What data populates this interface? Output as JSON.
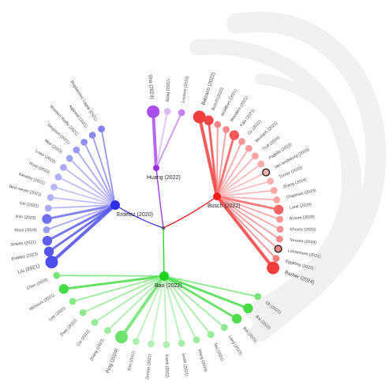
{
  "center": {
    "label": ""
  },
  "colors": {
    "blue": "#2f2fe8",
    "purple": "#9a2ee8",
    "red": "#f01c1c",
    "green": "#1ed41e"
  },
  "clusters": [
    {
      "id": "blue",
      "hub_label": "Erdelez (2020)",
      "items": [
        {
          "label": "Bogdanovic Lagiar (2021)",
          "weight": 1
        },
        {
          "label": "Agarwal (2021)",
          "weight": 1
        },
        {
          "label": "Montero Reiffe (2021)",
          "weight": 1
        },
        {
          "label": "Simpson (2021)",
          "weight": 1
        },
        {
          "label": "Med (2023)",
          "weight": 1
        },
        {
          "label": "Lowe (2022)",
          "weight": 1
        },
        {
          "label": "Ross (2023)",
          "weight": 1
        },
        {
          "label": "Kleveby (2021)",
          "weight": 1
        },
        {
          "label": "Bird-meyer (2021)",
          "weight": 1
        },
        {
          "label": "Gin (2022)",
          "weight": 1
        },
        {
          "label": "Kim (2023)",
          "weight": 2
        },
        {
          "label": "Ross (2024)",
          "weight": 1
        },
        {
          "label": "Smetts (2021)",
          "weight": 2
        },
        {
          "label": "Erdelez (2023)",
          "weight": 2
        },
        {
          "label": "Liu (2021)",
          "weight": 3
        }
      ]
    },
    {
      "id": "purple",
      "hub_label": "Huang (2022)",
      "items": [
        {
          "label": "Sha (2024)",
          "weight": 3
        },
        {
          "label": "Boag (2022)",
          "weight": 1
        },
        {
          "label": "Lusiano (2022)",
          "weight": 1
        }
      ]
    },
    {
      "id": "red",
      "hub_label": "Busch (2022)",
      "items": [
        {
          "label": "Balzano (2022)",
          "weight": 3
        },
        {
          "label": "Busch (2020)",
          "weight": 2
        },
        {
          "label": "Woelfken (2021)",
          "weight": 1
        },
        {
          "label": "Wonders (2021)",
          "weight": 1
        },
        {
          "label": "Fabi (2021)",
          "weight": 2
        },
        {
          "label": "Oz (2022)",
          "weight": 1
        },
        {
          "label": "Mosfach (2021)",
          "weight": 1
        },
        {
          "label": "Troll (2024)",
          "weight": 1
        },
        {
          "label": "Pogello (2023)",
          "weight": 1
        },
        {
          "label": "Van landsburg (2023)",
          "weight": 1,
          "ring": true
        },
        {
          "label": "Turner (2020)",
          "weight": 1
        },
        {
          "label": "Zhang (2024)",
          "weight": 1
        },
        {
          "label": "Chapman (2023)",
          "weight": 1
        },
        {
          "label": "Lane (2020)",
          "weight": 2
        },
        {
          "label": "Broom (2020)",
          "weight": 1
        },
        {
          "label": "Khoury (2020)",
          "weight": 1
        },
        {
          "label": "Teixeira (2024)",
          "weight": 1
        },
        {
          "label": "Lonsemore (2021)",
          "weight": 1,
          "ring": true
        },
        {
          "label": "Eggeling (2022)",
          "weight": 1
        },
        {
          "label": "Barber (2024)",
          "weight": 3
        }
      ]
    },
    {
      "id": "green",
      "hub_label": "Bao (2022)",
      "items": [
        {
          "label": "Chen (2020)",
          "weight": 1
        },
        {
          "label": "Mimouni (2021)",
          "weight": 2
        },
        {
          "label": "Lee (2022)",
          "weight": 1
        },
        {
          "label": "Zhao (2022)",
          "weight": 1
        },
        {
          "label": "Cui (2022)",
          "weight": 1
        },
        {
          "label": "Zhang (2022)",
          "weight": 1
        },
        {
          "label": "Ping (2024)",
          "weight": 3
        },
        {
          "label": "Kim (2021)",
          "weight": 1
        },
        {
          "label": "Zeman (2021)",
          "weight": 1
        },
        {
          "label": "Kamil (2022)",
          "weight": 1
        },
        {
          "label": "Smith (2021)",
          "weight": 1
        },
        {
          "label": "Wang (2024)",
          "weight": 1
        },
        {
          "label": "Niu (2021)",
          "weight": 1
        },
        {
          "label": "Lang (2023)",
          "weight": 1
        },
        {
          "label": "Bai (2023)",
          "weight": 2
        },
        {
          "label": "Bai (2022)",
          "weight": 2
        },
        {
          "label": "Oh (2021)",
          "weight": 1
        }
      ]
    }
  ]
}
